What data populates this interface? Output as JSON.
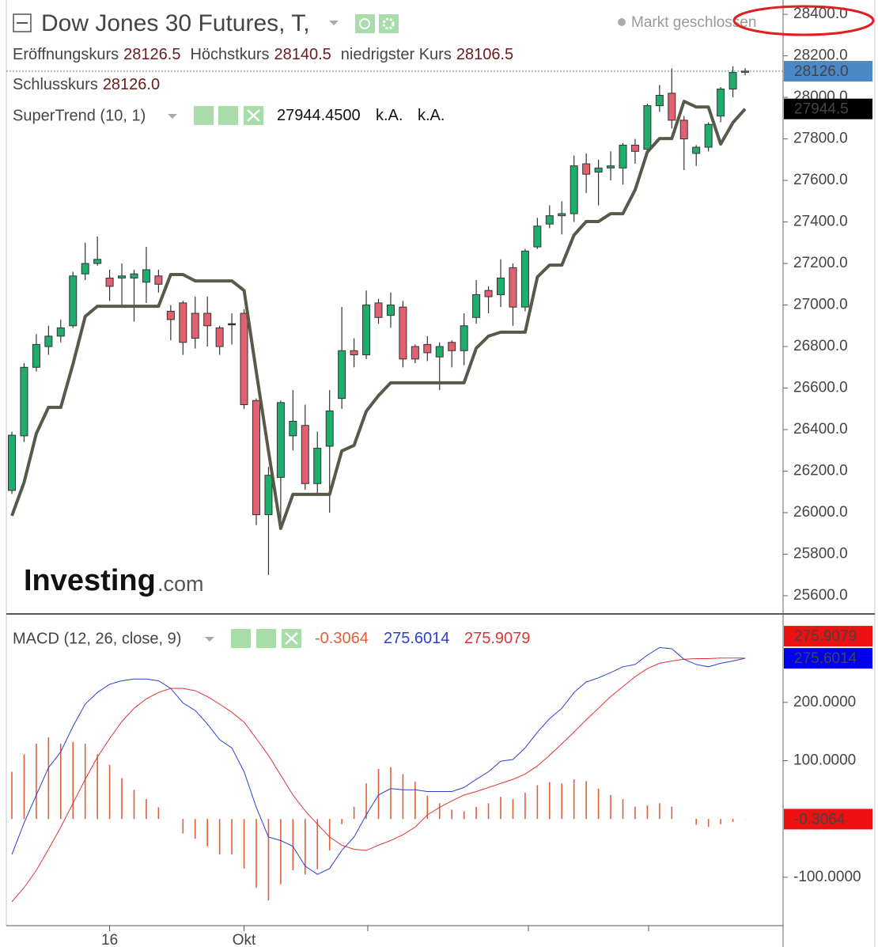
{
  "chart_data": [
    {
      "type": "candlestick",
      "title": "Dow Jones 30 Futures, T,",
      "status": "Markt geschlossen",
      "ohlc_legend": [
        {
          "name": "Eröffnungskurs",
          "value": 28126.5
        },
        {
          "name": "Höchstkurs",
          "value": 28140.5
        },
        {
          "name": "niedrigster Kurs",
          "value": 28106.5
        },
        {
          "name": "Schlusskurs",
          "value": {
            "value": 28126,
            "label": "28126.0"
          }
        }
      ],
      "watermark": [
        "Investing",
        ".com"
      ],
      "categories": [
        null,
        null,
        null,
        null,
        null,
        null,
        null,
        null,
        "16",
        null,
        null,
        null,
        null,
        null,
        null,
        null,
        null,
        null,
        null,
        "Okt",
        null,
        null,
        null,
        null,
        null,
        null,
        null,
        null,
        null,
        null,
        null,
        null,
        null,
        null,
        null,
        null,
        null,
        null,
        null,
        null,
        null,
        null,
        null,
        null,
        null,
        null,
        null,
        null,
        null,
        null,
        null,
        null,
        null,
        null,
        null,
        null,
        null,
        null,
        null,
        null,
        null
      ],
      "open": [
        26107,
        26370,
        26700,
        26800,
        26850,
        26900,
        27150,
        27200,
        27130,
        27130,
        27130,
        27110,
        27140,
        26970,
        27010,
        26960,
        26960,
        26890,
        26910,
        26960,
        26540,
        25990,
        26170,
        26370,
        26420,
        26140,
        26320,
        26550,
        26780,
        26760,
        27010,
        26950,
        26990,
        26800,
        26810,
        26750,
        26820,
        26780,
        26940,
        27070,
        27050,
        27180,
        26990,
        27280,
        27390,
        27430,
        27440,
        27680,
        27640,
        27660,
        27660,
        27770,
        27750,
        27960,
        28020,
        27890,
        27730,
        27760,
        27910,
        28040,
        28126.5
      ],
      "high": [
        26390,
        26720,
        26860,
        26900,
        26930,
        27160,
        27300,
        27330,
        27170,
        27200,
        27170,
        27280,
        27170,
        27000,
        27020,
        27040,
        27040,
        26900,
        26960,
        26980,
        26550,
        26220,
        26540,
        26590,
        26520,
        26390,
        26590,
        26990,
        26840,
        27070,
        27030,
        27060,
        27020,
        26810,
        26850,
        26820,
        26830,
        26960,
        27120,
        27090,
        27220,
        27200,
        27270,
        27420,
        27480,
        27500,
        27720,
        27730,
        27700,
        27740,
        27780,
        27800,
        27970,
        28060,
        28140,
        27910,
        27770,
        27880,
        28050,
        28150,
        28140.5
      ],
      "low": [
        26090,
        26340,
        26680,
        26760,
        26820,
        26890,
        27120,
        27190,
        27020,
        27000,
        26920,
        27010,
        27060,
        26830,
        26760,
        26790,
        26800,
        26760,
        26810,
        26500,
        25940,
        25700,
        25940,
        26300,
        26110,
        26080,
        26000,
        26500,
        26700,
        26740,
        26910,
        26890,
        26700,
        26720,
        26730,
        26590,
        26700,
        26710,
        26910,
        26960,
        26990,
        26900,
        26970,
        27270,
        27370,
        27340,
        27400,
        27540,
        27480,
        27600,
        27580,
        27680,
        27740,
        27930,
        27850,
        27650,
        27670,
        27740,
        27880,
        28000,
        28106.5
      ],
      "close": [
        26373,
        26700,
        26810,
        26850,
        26890,
        27140,
        27200,
        27220,
        27090,
        27140,
        27150,
        27170,
        27100,
        26930,
        26820,
        26840,
        26900,
        26800,
        26910,
        26520,
        25990,
        26180,
        26530,
        26440,
        26140,
        26310,
        26490,
        26780,
        26760,
        27000,
        26940,
        27000,
        26740,
        26740,
        26770,
        26800,
        26780,
        26900,
        27050,
        27040,
        27130,
        26990,
        27260,
        27380,
        27430,
        27440,
        27670,
        27630,
        27660,
        27670,
        27770,
        27740,
        27960,
        28010,
        27890,
        27800,
        27760,
        27870,
        28040,
        28120,
        28126
      ],
      "up_color": "#1fad6e",
      "down_color": "#e0616f",
      "series": [
        {
          "name": "SuperTrend (10, 1)",
          "color": "#575a48",
          "values": [
            25985,
            26145,
            26381,
            26507,
            26507,
            26716,
            26945,
            26994,
            26994,
            26994,
            26994,
            26994,
            26994,
            27147,
            27147,
            27116,
            27116,
            27116,
            27116,
            27070,
            26678,
            26297,
            25924,
            26088,
            26088,
            26088,
            26088,
            26297,
            26324,
            26488,
            26564,
            26625,
            26625,
            26625,
            26625,
            26625,
            26625,
            26625,
            26792,
            26850,
            26869,
            26869,
            26869,
            27135,
            27192,
            27192,
            27337,
            27402,
            27402,
            27440,
            27440,
            27554,
            27737,
            27802,
            27802,
            27981,
            27954,
            27954,
            27775,
            27878,
            27944.45
          ],
          "legend_values": [
            {
              "value": 27944.45,
              "label": "27944.4500"
            },
            "k.A.",
            "k.A."
          ],
          "badge": {
            "value": 27944.45,
            "label": "27944.5"
          }
        }
      ],
      "close_badge": {
        "value": 28126,
        "label": "28126.0",
        "color": "#4a88c7"
      },
      "ylim": [
        25516,
        28469
      ],
      "yticks": [
        {
          "value": 25600,
          "label": "25600.0"
        },
        {
          "value": 25800,
          "label": "25800.0"
        },
        {
          "value": 26000,
          "label": "26000.0"
        },
        {
          "value": 26200,
          "label": "26200.0"
        },
        {
          "value": 26400,
          "label": "26400.0"
        },
        {
          "value": 26600,
          "label": "26600.0"
        },
        {
          "value": 26800,
          "label": "26800.0"
        },
        {
          "value": 27000,
          "label": "27000.0"
        },
        {
          "value": 27200,
          "label": "27200.0"
        },
        {
          "value": 27400,
          "label": "27400.0"
        },
        {
          "value": 27600,
          "label": "27600.0"
        },
        {
          "value": 27800,
          "label": "27800.0"
        },
        {
          "value": 28000,
          "label": "28000.0"
        },
        {
          "value": 28200,
          "label": "28200.0"
        },
        {
          "value": 28400,
          "label": "28400.0"
        }
      ],
      "grid": false
    },
    {
      "type": "macd",
      "title": "MACD (12, 26, close, 9)",
      "series": [
        {
          "type": "bar",
          "color": "#e0603c",
          "values": [
            81,
            111,
            129,
            140,
            129,
            132,
            129,
            111,
            93,
            70,
            50,
            34,
            20,
            0,
            -25,
            -34,
            -47,
            -61,
            -61,
            -85,
            -118,
            -140,
            -112,
            -88,
            -95,
            -86,
            -54,
            -9,
            21,
            61,
            86,
            89,
            77,
            64,
            40,
            27,
            16,
            13,
            21,
            27,
            38,
            34,
            45,
            58,
            63,
            61,
            68,
            65,
            52,
            41,
            34,
            21,
            23,
            27,
            21,
            0,
            -10,
            -14,
            -9,
            -5,
            -0.3064
          ]
        },
        {
          "type": "line",
          "color": "#2a3fd4",
          "values": [
            -61,
            -7,
            41,
            88,
            115,
            159,
            197,
            217,
            231,
            237,
            240,
            240,
            237,
            224,
            199,
            186,
            163,
            136,
            122,
            81,
            20,
            -31,
            -37,
            -47,
            -81,
            -95,
            -85,
            -54,
            -31,
            7,
            41,
            52,
            50,
            50,
            47,
            47,
            47,
            54,
            68,
            81,
            99,
            102,
            122,
            149,
            172,
            190,
            217,
            235,
            242,
            251,
            261,
            265,
            281,
            294,
            292,
            274,
            265,
            261,
            267,
            271,
            275.6014
          ]
        },
        {
          "type": "line",
          "color": "#e03434",
          "values": [
            -142,
            -118,
            -88,
            -52,
            -14,
            27,
            68,
            106,
            138,
            167,
            190,
            206,
            217,
            224,
            224,
            220,
            210,
            197,
            183,
            166,
            138,
            109,
            75,
            41,
            14,
            -9,
            -31,
            -45,
            -52,
            -54,
            -45,
            -37,
            -27,
            -14,
            7,
            20,
            31,
            41,
            47,
            54,
            61,
            68,
            77,
            91,
            109,
            129,
            149,
            170,
            190,
            210,
            227,
            244,
            258,
            267,
            271,
            274,
            275,
            275,
            276,
            276,
            275.9079
          ]
        }
      ],
      "ylim": [
        -183,
        349
      ],
      "yticks": [
        {
          "value": -100,
          "label": "-100.0000"
        },
        {
          "value": 100,
          "label": "100.0000"
        },
        {
          "value": 200,
          "label": "200.0000"
        }
      ]
    }
  ]
}
